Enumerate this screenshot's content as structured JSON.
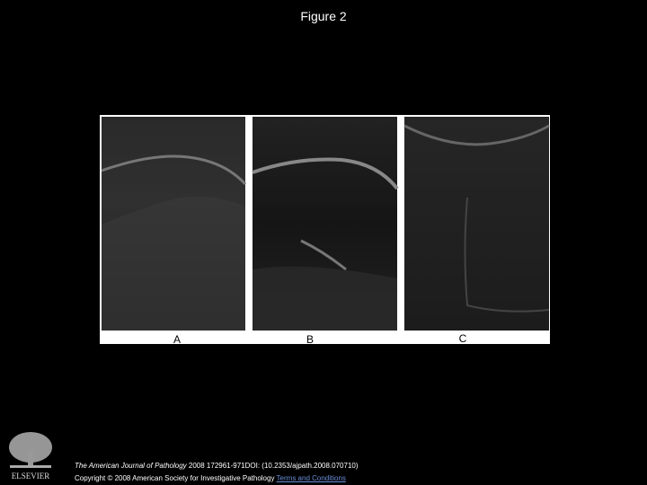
{
  "header": {
    "title": "Figure 2"
  },
  "figure": {
    "panels": [
      {
        "label": "A"
      },
      {
        "label": "B"
      },
      {
        "label": "C"
      }
    ]
  },
  "footer": {
    "journal": "The American Journal of Pathology",
    "citation": "2008 172961-971DOI: (10.2353/ajpath.2008.070710)",
    "copyright": "Copyright © 2008 American Society for Investigative Pathology",
    "link": "Terms and Conditions",
    "publisher": "ELSEVIER"
  }
}
